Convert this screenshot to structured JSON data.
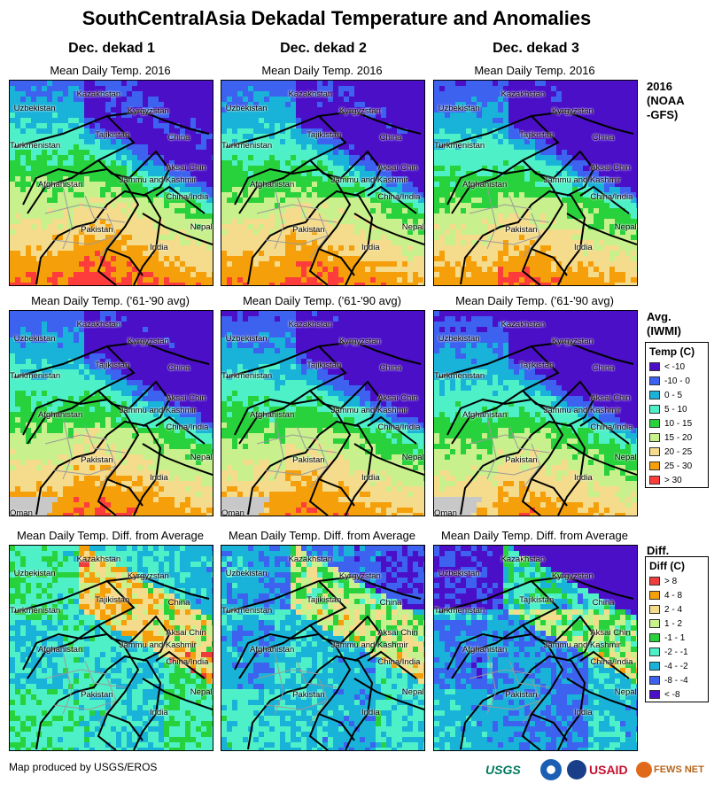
{
  "title": "SouthCentralAsia Dekadal Temperature and Anomalies",
  "columns": [
    "Dec. dekad 1",
    "Dec. dekad 2",
    "Dec. dekad 3"
  ],
  "rows": [
    {
      "panel_title": "Mean Daily Temp. 2016",
      "label": "2016\n(NOAA\n-GFS)",
      "kind": "temp2016"
    },
    {
      "panel_title": "Mean Daily Temp. ('61-'90 avg)",
      "label": "Avg.\n(IWMI)",
      "kind": "avg"
    },
    {
      "panel_title": "Mean Daily Temp. Diff. from Average",
      "label": "Diff.",
      "kind": "diff"
    }
  ],
  "place_names": [
    "Kazakhstan",
    "Uzbekistan",
    "Kyrgyzstan",
    "Tajikistan",
    "Turkmenistan",
    "China",
    "Aksai Chin",
    "Jammu and Kashmir",
    "Afghanistan",
    "China/India",
    "Pakistan",
    "Nepal",
    "India",
    "Oman"
  ],
  "legend_temp": {
    "title": "Temp (C)",
    "items": [
      {
        "label": "< -10",
        "color": "#4b0fc8"
      },
      {
        "label": "-10 - 0",
        "color": "#3d62f0"
      },
      {
        "label": "0 - 5",
        "color": "#19b2d9"
      },
      {
        "label": "5 - 10",
        "color": "#4ef0c8"
      },
      {
        "label": "10 - 15",
        "color": "#28d23c"
      },
      {
        "label": "15 - 20",
        "color": "#c8f08c"
      },
      {
        "label": "20 - 25",
        "color": "#f5dc8c"
      },
      {
        "label": "25 - 30",
        "color": "#f5a00a"
      },
      {
        "label": "> 30",
        "color": "#ff3c3c"
      }
    ]
  },
  "legend_diff": {
    "title": "Diff (C)",
    "items": [
      {
        "label": "> 8",
        "color": "#f03c3c"
      },
      {
        "label": "4 - 8",
        "color": "#f5a00a"
      },
      {
        "label": "2 - 4",
        "color": "#f5dc8c"
      },
      {
        "label": "1 - 2",
        "color": "#c8f08c"
      },
      {
        "label": "-1 - 1",
        "color": "#28d23c"
      },
      {
        "label": "-2 - -1",
        "color": "#4ef0c8"
      },
      {
        "label": "-4 - -2",
        "color": "#19b2d9"
      },
      {
        "label": "-8 - -4",
        "color": "#3d62f0"
      },
      {
        "label": "< -8",
        "color": "#4b0fc8"
      }
    ]
  },
  "footer": "Map produced by USGS/EROS",
  "logos": [
    "USGS",
    "USAID",
    "FEWS NET"
  ]
}
